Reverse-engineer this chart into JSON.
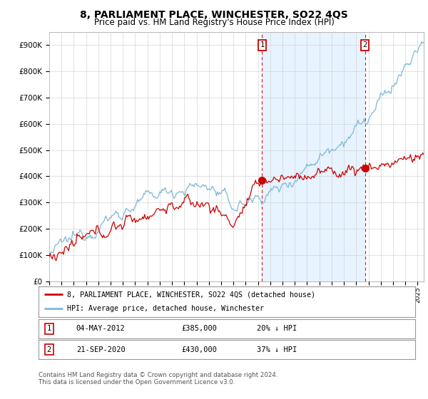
{
  "title": "8, PARLIAMENT PLACE, WINCHESTER, SO22 4QS",
  "subtitle": "Price paid vs. HM Land Registry's House Price Index (HPI)",
  "title_fontsize": 10,
  "subtitle_fontsize": 8.5,
  "ylabel_ticks": [
    "£0",
    "£100K",
    "£200K",
    "£300K",
    "£400K",
    "£500K",
    "£600K",
    "£700K",
    "£800K",
    "£900K"
  ],
  "ytick_values": [
    0,
    100000,
    200000,
    300000,
    400000,
    500000,
    600000,
    700000,
    800000,
    900000
  ],
  "ylim": [
    0,
    950000
  ],
  "xlim_start": 1995.0,
  "xlim_end": 2025.5,
  "hpi_color": "#7db8d8",
  "hpi_fill_color": "#ddeeff",
  "price_color": "#cc0000",
  "sale1_year": 2012.34,
  "sale1_price": 385000,
  "sale2_year": 2020.72,
  "sale2_price": 430000,
  "legend_line1": "8, PARLIAMENT PLACE, WINCHESTER, SO22 4QS (detached house)",
  "legend_line2": "HPI: Average price, detached house, Winchester",
  "footnote": "Contains HM Land Registry data © Crown copyright and database right 2024.\nThis data is licensed under the Open Government Licence v3.0.",
  "background_color": "#ffffff",
  "grid_color": "#cccccc"
}
